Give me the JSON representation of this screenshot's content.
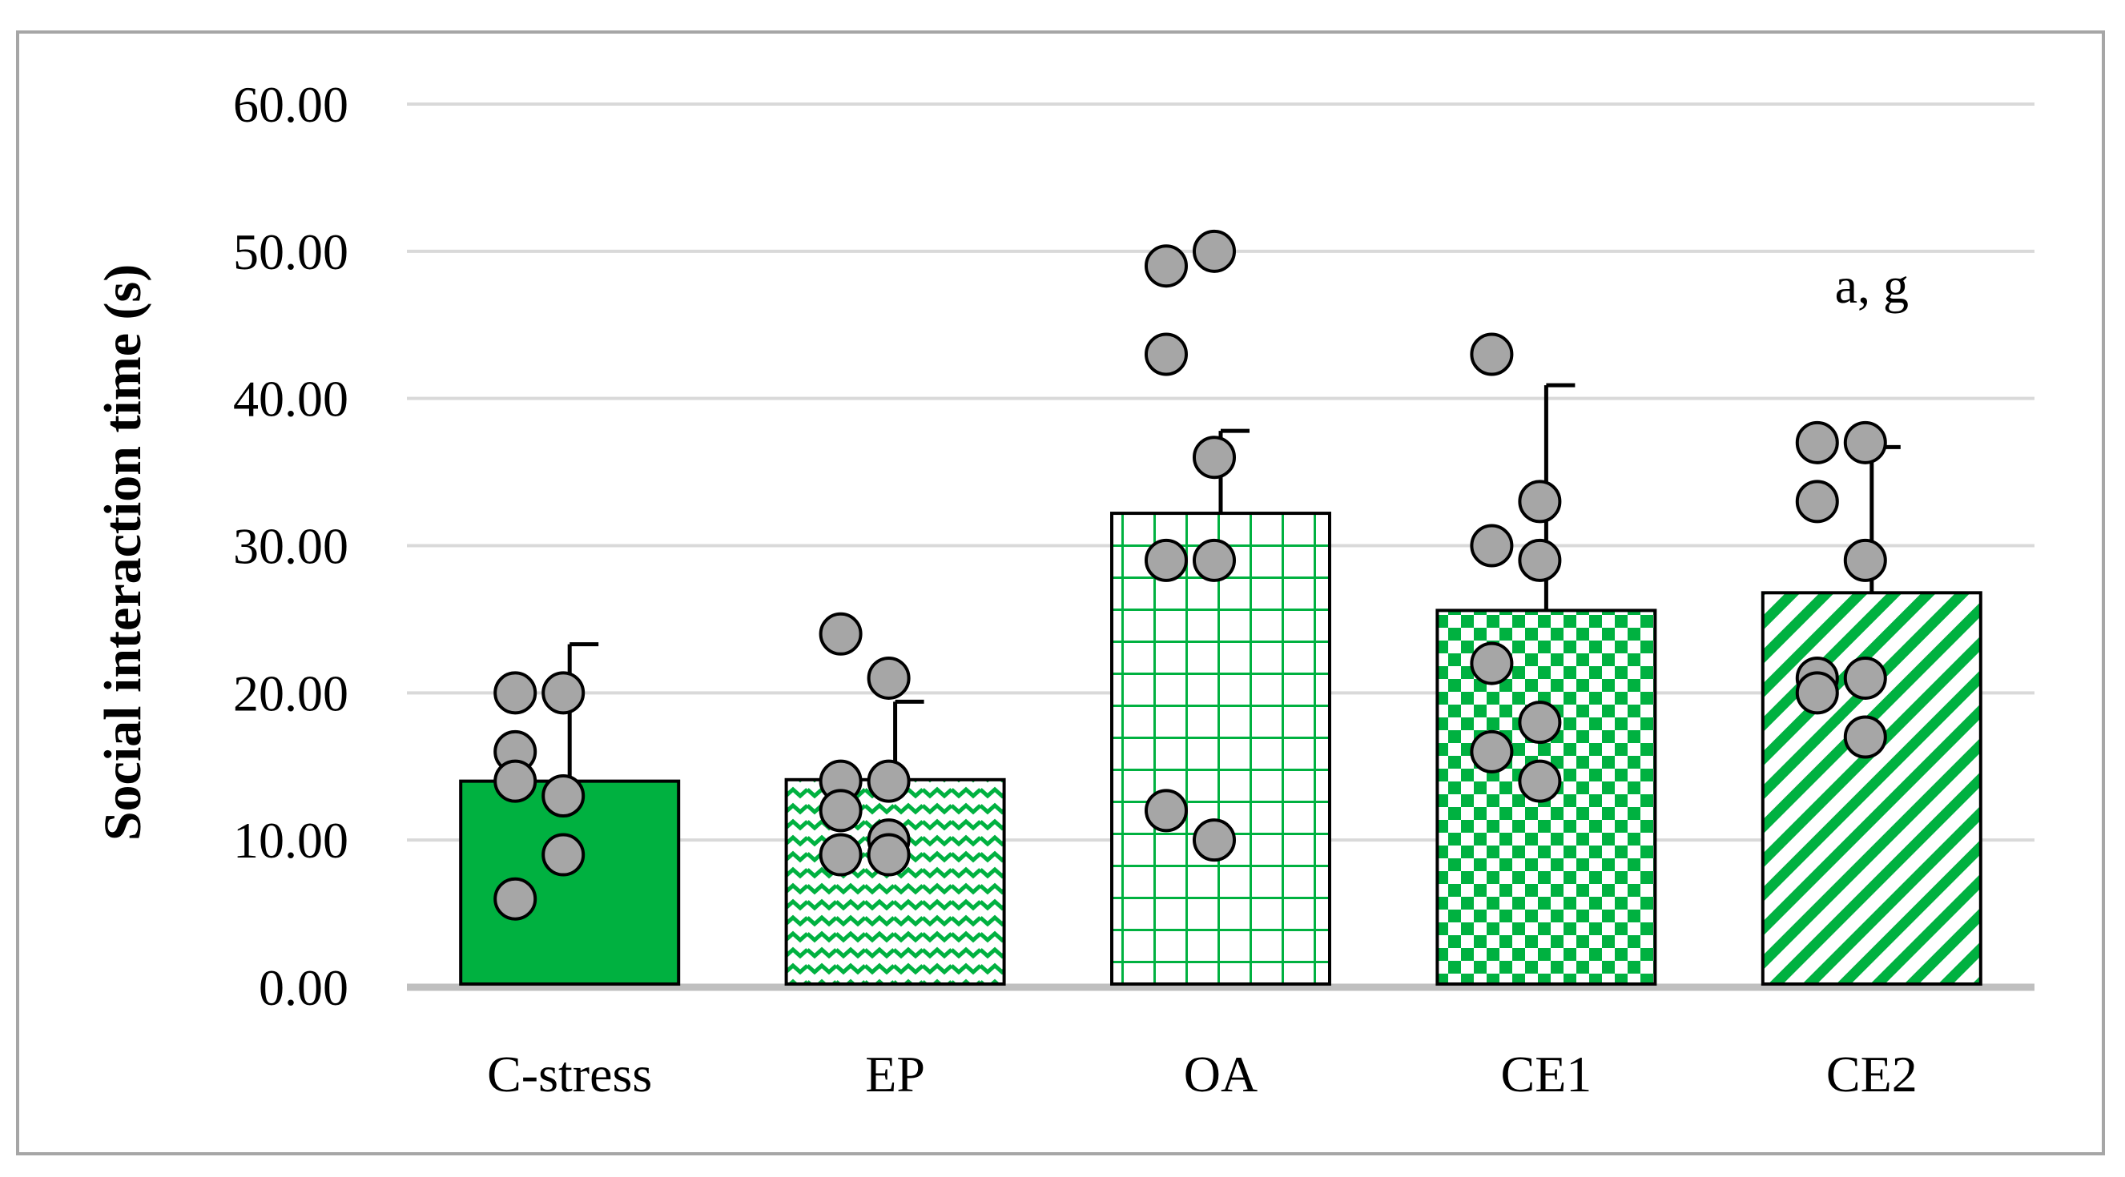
{
  "chart_data": {
    "type": "bar",
    "title": "",
    "xlabel": "",
    "ylabel": "Social interaction time (s)",
    "ylim": [
      0,
      60
    ],
    "yticks": [
      "0.00",
      "10.00",
      "20.00",
      "30.00",
      "40.00",
      "50.00",
      "60.00"
    ],
    "grid": true,
    "legend": "none",
    "categories": [
      "C-stress",
      "EP",
      "OA",
      "CE1",
      "CE2"
    ],
    "series": [
      {
        "values": [
          14.0,
          14.1,
          32.2,
          25.6,
          26.8
        ],
        "error": [
          9.3,
          5.3,
          5.6,
          15.3,
          9.9
        ],
        "patterns": [
          "solid",
          "zigzag",
          "grid",
          "checker",
          "diagonal"
        ],
        "color": "#00b140"
      }
    ],
    "points": [
      [
        20,
        20,
        16,
        13,
        14,
        9,
        6
      ],
      [
        24,
        21,
        14,
        14,
        12,
        10,
        9,
        9
      ],
      [
        49,
        50,
        43,
        36,
        29,
        29,
        12,
        10
      ],
      [
        43,
        33,
        30,
        29,
        22,
        18,
        16,
        14
      ],
      [
        37,
        37,
        33,
        29,
        21,
        21,
        20,
        17
      ]
    ],
    "annotations": [
      {
        "category": "CE2",
        "text": "a, g",
        "y": 46.5
      }
    ],
    "point_fill": "#a6a6a6",
    "gridline_color": "#d9d9d9",
    "axis_color": "#bfbfbf"
  }
}
